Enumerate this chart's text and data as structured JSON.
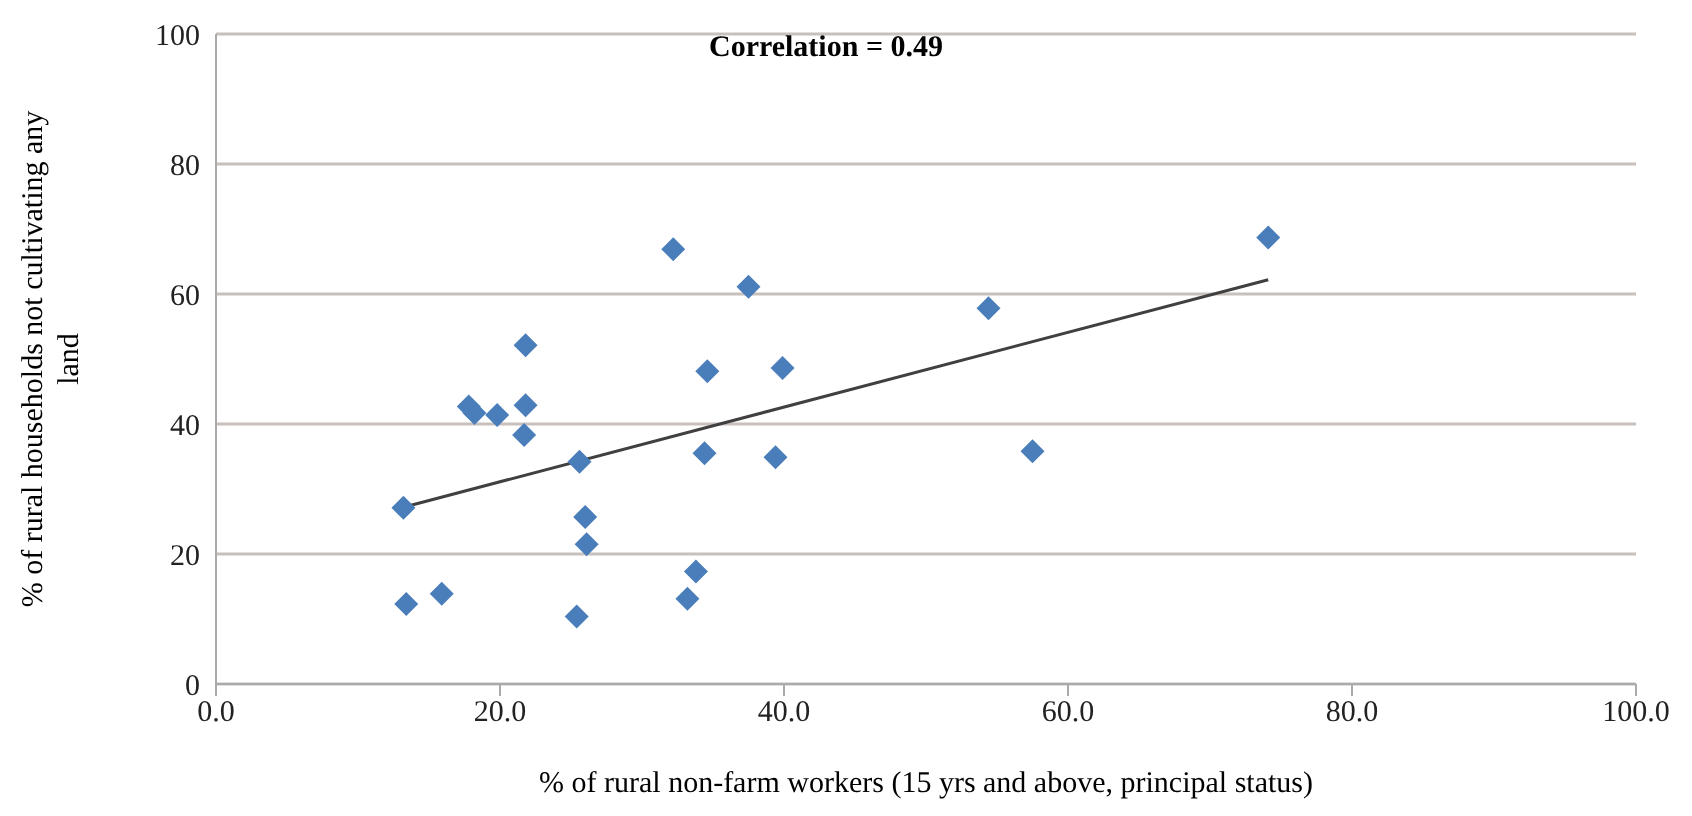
{
  "chart_data": {
    "type": "scatter",
    "title": "Correlation = 0.49",
    "xlabel": "% of rural non-farm workers (15 yrs and above, principal status)",
    "ylabel": "% of rural households not cultivating any land",
    "xlim": [
      0,
      100
    ],
    "xticks": [
      {
        "value": 0,
        "label": "0.0"
      },
      {
        "value": 20,
        "label": "20.0"
      },
      {
        "value": 40,
        "label": "40.0"
      },
      {
        "value": 60,
        "label": "60.0"
      },
      {
        "value": 80,
        "label": "80.0"
      },
      {
        "value": 100,
        "label": "100.0"
      }
    ],
    "ylim": [
      0,
      100
    ],
    "yticks": [
      0,
      20,
      40,
      60,
      80,
      100
    ],
    "grid": "y",
    "legend": false,
    "marker": "diamond",
    "series": [
      {
        "color": "#4a7ebb",
        "x": [
          13.2,
          13.4,
          15.9,
          17.8,
          18.2,
          19.8,
          21.8,
          21.8,
          21.7,
          25.6,
          26.0,
          26.1,
          25.4,
          32.2,
          37.5,
          34.6,
          39.9,
          34.4,
          39.4,
          33.8,
          33.2,
          54.4,
          57.5,
          74.1
        ],
        "values": [
          27.1,
          12.3,
          13.9,
          42.7,
          41.7,
          41.4,
          52.1,
          42.9,
          38.3,
          34.2,
          25.7,
          21.5,
          10.4,
          66.9,
          61.1,
          48.1,
          48.6,
          35.5,
          34.9,
          17.3,
          13.1,
          57.8,
          35.8,
          68.7
        ]
      },
      {
        "type": "line",
        "color": "#404040",
        "x": [
          13.2,
          74.1
        ],
        "values": [
          27.2,
          62.2
        ],
        "marker": "none"
      }
    ]
  }
}
